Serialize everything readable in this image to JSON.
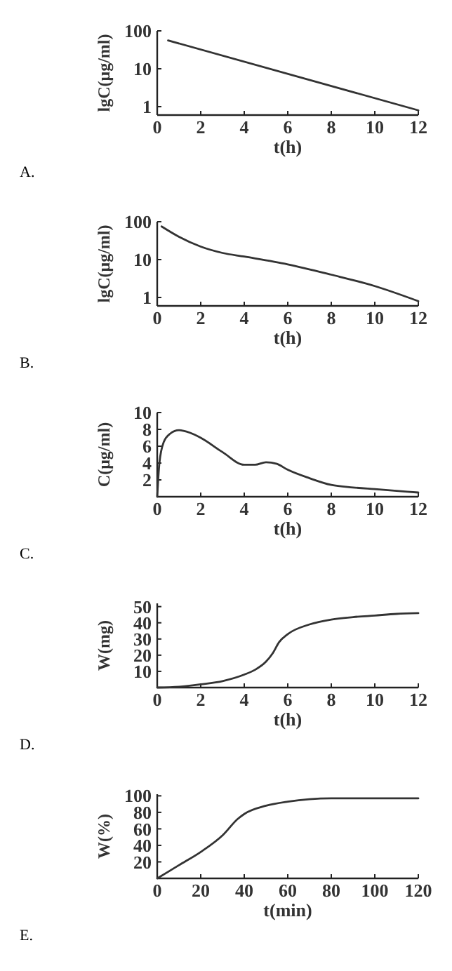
{
  "chart_data": [
    {
      "type": "line",
      "xlabel": "t(h)",
      "ylabel": "lgC(μg/ml)",
      "log": "y",
      "xlim": [
        0,
        12
      ],
      "xticks": [
        0,
        2,
        4,
        6,
        8,
        10,
        12
      ],
      "ylim": [
        0.6,
        100
      ],
      "yticks": [
        1,
        10,
        100
      ],
      "annotations": [
        "A."
      ],
      "series": [
        {
          "color": "#333333",
          "x": [
            0.5,
            12
          ],
          "values": [
            56,
            0.8
          ]
        }
      ]
    },
    {
      "type": "line",
      "xlabel": "t(h)",
      "ylabel": "lgC(μg/ml)",
      "log": "y",
      "xlim": [
        0,
        12
      ],
      "xticks": [
        0,
        2,
        4,
        6,
        8,
        10,
        12
      ],
      "ylim": [
        0.6,
        100
      ],
      "yticks": [
        1,
        10,
        100
      ],
      "annotations": [
        "B."
      ],
      "series": [
        {
          "color": "#333333",
          "x": [
            0.2,
            1,
            2,
            3,
            4,
            6,
            8,
            10,
            12
          ],
          "values": [
            75,
            40,
            22,
            15,
            12,
            7.5,
            4,
            2,
            0.8
          ]
        }
      ]
    },
    {
      "type": "line",
      "xlabel": "t(h)",
      "ylabel": "C(μg/ml)",
      "xlim": [
        0,
        12
      ],
      "xticks": [
        0,
        2,
        4,
        6,
        8,
        10,
        12
      ],
      "ylim": [
        0,
        10
      ],
      "yticks": [
        2,
        4,
        6,
        8,
        10
      ],
      "annotations": [
        "C."
      ],
      "series": [
        {
          "color": "#333333",
          "x": [
            0,
            0.1,
            0.3,
            0.6,
            1,
            1.5,
            2,
            3,
            4,
            4.5,
            5,
            5.5,
            6,
            7,
            8,
            9,
            10,
            11,
            12
          ],
          "values": [
            0,
            4,
            6.5,
            7.5,
            7.9,
            7.6,
            7,
            5.3,
            3.8,
            3.8,
            4.1,
            3.9,
            3.2,
            2.2,
            1.4,
            1.1,
            0.9,
            0.7,
            0.5
          ]
        }
      ]
    },
    {
      "type": "line",
      "xlabel": "t(h)",
      "ylabel": "W(mg)",
      "xlim": [
        0,
        12
      ],
      "xticks": [
        0,
        2,
        4,
        6,
        8,
        10,
        12
      ],
      "ylim": [
        0,
        52
      ],
      "yticks": [
        10,
        20,
        30,
        40,
        50
      ],
      "annotations": [
        "D."
      ],
      "series": [
        {
          "color": "#333333",
          "x": [
            0,
            1,
            2,
            3,
            4,
            4.5,
            5,
            5.3,
            5.6,
            6,
            7,
            8,
            9,
            10,
            11,
            12
          ],
          "values": [
            0,
            0.5,
            2,
            4,
            8,
            11,
            16,
            21,
            28,
            33,
            39,
            42,
            43.5,
            44.5,
            45.5,
            46
          ]
        }
      ]
    },
    {
      "type": "line",
      "xlabel": "t(min)",
      "ylabel": "W(%)",
      "xlim": [
        0,
        120
      ],
      "xticks": [
        0,
        20,
        40,
        60,
        80,
        100,
        120
      ],
      "ylim": [
        0,
        102
      ],
      "yticks": [
        20,
        40,
        60,
        80,
        100
      ],
      "annotations": [
        "E."
      ],
      "series": [
        {
          "color": "#333333",
          "x": [
            0,
            10,
            20,
            30,
            37,
            40,
            50,
            60,
            70,
            80,
            100,
            120
          ],
          "values": [
            0,
            16,
            32,
            52,
            72,
            78,
            88,
            93,
            96,
            97,
            97,
            97
          ]
        }
      ]
    }
  ]
}
